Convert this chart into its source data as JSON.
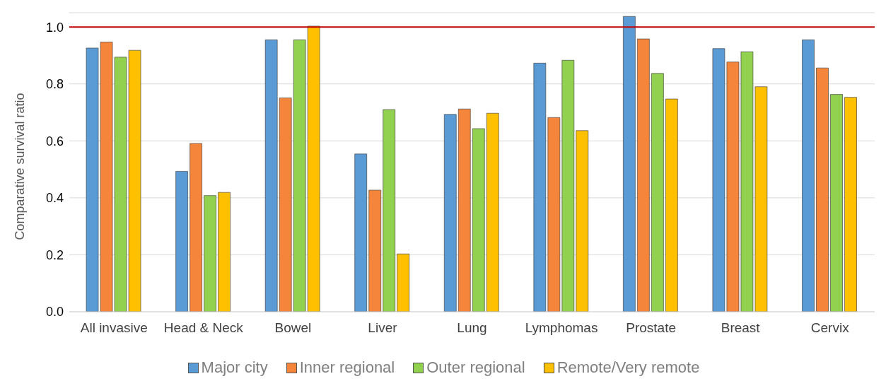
{
  "chart_data": {
    "type": "bar",
    "ylabel": "Comparative survival ratio",
    "categories": [
      "All invasive",
      "Head & Neck",
      "Bowel",
      "Liver",
      "Lung",
      "Lymphomas",
      "Prostate",
      "Breast",
      "Cervix"
    ],
    "series": [
      {
        "name": "Major city",
        "color": "#5b9bd5",
        "values": [
          0.926,
          0.493,
          0.955,
          0.554,
          0.693,
          0.873,
          1.037,
          0.924,
          0.955
        ]
      },
      {
        "name": "Inner regional",
        "color": "#f5853a",
        "values": [
          0.947,
          0.591,
          0.751,
          0.427,
          0.712,
          0.682,
          0.958,
          0.877,
          0.856
        ]
      },
      {
        "name": "Outer regional",
        "color": "#92d050",
        "values": [
          0.894,
          0.408,
          0.955,
          0.71,
          0.643,
          0.883,
          0.837,
          0.913,
          0.763
        ]
      },
      {
        "name": "Remote/Very remote",
        "color": "#ffc000",
        "values": [
          0.918,
          0.419,
          1.003,
          0.203,
          0.697,
          0.636,
          0.747,
          0.79,
          0.753
        ]
      }
    ],
    "ylim": [
      0,
      1.05
    ],
    "yticks": [
      {
        "value": 0,
        "label": "0.0"
      },
      {
        "value": 0.2,
        "label": "0.2"
      },
      {
        "value": 0.4,
        "label": "0.4"
      },
      {
        "value": 0.6,
        "label": "0.6"
      },
      {
        "value": 0.8,
        "label": "0.8"
      },
      {
        "value": 1,
        "label": "1.0"
      }
    ],
    "ref_lines": [
      {
        "axis": "y",
        "value": 1,
        "color": "#c00000"
      }
    ],
    "grid": "y",
    "legend": "bottom"
  }
}
